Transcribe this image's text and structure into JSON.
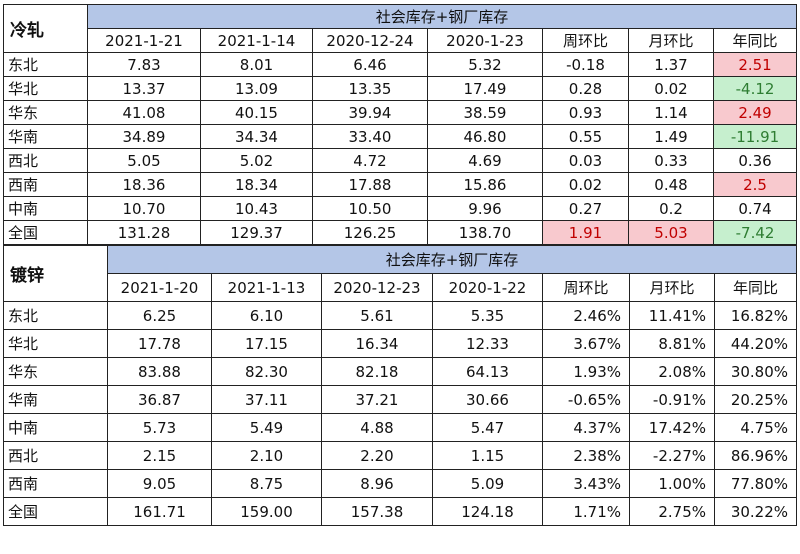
{
  "cold_rolled": {
    "label": "冷轧",
    "group_header": "社会库存+钢厂库存",
    "columns": [
      "2021-1-21",
      "2021-1-14",
      "2020-12-24",
      "2020-1-23",
      "周环比",
      "月环比",
      "年同比"
    ],
    "rows": [
      {
        "region": "东北",
        "c1": "7.83",
        "c2": "8.01",
        "c3": "6.46",
        "c4": "5.32",
        "wow": "-0.18",
        "mom": "1.37",
        "yoy": "2.51"
      },
      {
        "region": "华北",
        "c1": "13.37",
        "c2": "13.09",
        "c3": "13.35",
        "c4": "17.49",
        "wow": "0.28",
        "mom": "0.02",
        "yoy": "-4.12"
      },
      {
        "region": "华东",
        "c1": "41.08",
        "c2": "40.15",
        "c3": "39.94",
        "c4": "38.59",
        "wow": "0.93",
        "mom": "1.14",
        "yoy": "2.49"
      },
      {
        "region": "华南",
        "c1": "34.89",
        "c2": "34.34",
        "c3": "33.40",
        "c4": "46.80",
        "wow": "0.55",
        "mom": "1.49",
        "yoy": "-11.91"
      },
      {
        "region": "西北",
        "c1": "5.05",
        "c2": "5.02",
        "c3": "4.72",
        "c4": "4.69",
        "wow": "0.03",
        "mom": "0.33",
        "yoy": "0.36"
      },
      {
        "region": "西南",
        "c1": "18.36",
        "c2": "18.34",
        "c3": "17.88",
        "c4": "15.86",
        "wow": "0.02",
        "mom": "0.48",
        "yoy": "2.5"
      },
      {
        "region": "中南",
        "c1": "10.70",
        "c2": "10.43",
        "c3": "10.50",
        "c4": "9.96",
        "wow": "0.27",
        "mom": "0.2",
        "yoy": "0.74"
      },
      {
        "region": "全国",
        "c1": "131.28",
        "c2": "129.37",
        "c3": "126.25",
        "c4": "138.70",
        "wow": "1.91",
        "mom": "5.03",
        "yoy": "-7.42"
      }
    ],
    "highlight_colors": {
      "up": "#f8c9ce",
      "down": "#c6efce"
    }
  },
  "galvanized": {
    "label": "镀锌",
    "group_header": "社会库存+钢厂库存",
    "columns": [
      "2021-1-20",
      "2021-1-13",
      "2020-12-23",
      "2020-1-22",
      "周环比",
      "月环比",
      "年同比"
    ],
    "rows": [
      {
        "region": "东北",
        "c1": "6.25",
        "c2": "6.10",
        "c3": "5.61",
        "c4": "5.35",
        "wow": "2.46%",
        "mom": "11.41%",
        "yoy": "16.82%"
      },
      {
        "region": "华北",
        "c1": "17.78",
        "c2": "17.15",
        "c3": "16.34",
        "c4": "12.33",
        "wow": "3.67%",
        "mom": "8.81%",
        "yoy": "44.20%"
      },
      {
        "region": "华东",
        "c1": "83.88",
        "c2": "82.30",
        "c3": "82.18",
        "c4": "64.13",
        "wow": "1.93%",
        "mom": "2.08%",
        "yoy": "30.80%"
      },
      {
        "region": "华南",
        "c1": "36.87",
        "c2": "37.11",
        "c3": "37.21",
        "c4": "30.66",
        "wow": "-0.65%",
        "mom": "-0.91%",
        "yoy": "20.25%"
      },
      {
        "region": "中南",
        "c1": "5.73",
        "c2": "5.49",
        "c3": "4.88",
        "c4": "5.47",
        "wow": "4.37%",
        "mom": "17.42%",
        "yoy": "4.75%"
      },
      {
        "region": "西北",
        "c1": "2.15",
        "c2": "2.10",
        "c3": "2.20",
        "c4": "1.15",
        "wow": "2.38%",
        "mom": "-2.27%",
        "yoy": "86.96%"
      },
      {
        "region": "西南",
        "c1": "9.05",
        "c2": "8.75",
        "c3": "8.96",
        "c4": "5.09",
        "wow": "3.43%",
        "mom": "1.00%",
        "yoy": "77.80%"
      },
      {
        "region": "全国",
        "c1": "161.71",
        "c2": "159.00",
        "c3": "157.38",
        "c4": "124.18",
        "wow": "1.71%",
        "mom": "2.75%",
        "yoy": "30.22%"
      }
    ],
    "header_color": "#b4c6e7"
  }
}
